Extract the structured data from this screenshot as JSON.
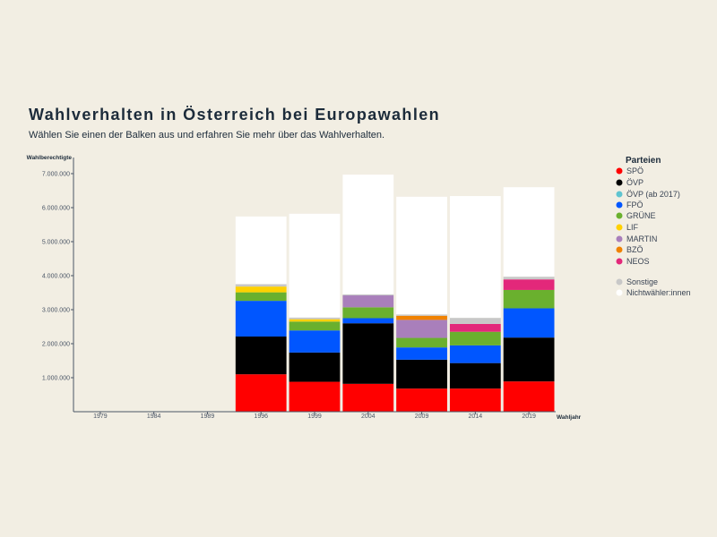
{
  "header": {
    "title": "Wahlverhalten in Österreich bei Europawahlen",
    "subtitle": "Wählen Sie einen der Balken aus und erfahren Sie mehr über das Wahlverhalten."
  },
  "chart_data": {
    "type": "bar",
    "stacked": true,
    "ylabel": "Wahlberechtigte",
    "xlabel": "Wahljahr",
    "ylim": [
      0,
      7000000
    ],
    "yticks": [
      "1.000.000",
      "2.000.000",
      "3.000.000",
      "4.000.000",
      "5.000.000",
      "6.000.000",
      "7.000.000"
    ],
    "categories": [
      "1979",
      "1984",
      "1989",
      "1996",
      "1999",
      "2004",
      "2009",
      "2014",
      "2019"
    ],
    "legend": {
      "title": "Parteien",
      "position": "right"
    },
    "series": [
      {
        "name": "SPÖ",
        "color": "#ff0000",
        "values": [
          null,
          null,
          null,
          1100000,
          880000,
          820000,
          680000,
          680000,
          890000
        ]
      },
      {
        "name": "ÖVP",
        "color": "#000000",
        "values": [
          null,
          null,
          null,
          1110000,
          860000,
          1780000,
          850000,
          750000,
          1290000
        ]
      },
      {
        "name": "ÖVP (ab 2017)",
        "color": "#5fc4d0",
        "values": [
          null,
          null,
          null,
          0,
          0,
          0,
          0,
          0,
          0
        ]
      },
      {
        "name": "FPÖ",
        "color": "#0056ff",
        "values": [
          null,
          null,
          null,
          1050000,
          650000,
          150000,
          360000,
          520000,
          860000
        ]
      },
      {
        "name": "GRÜNE",
        "color": "#6ab02e",
        "values": [
          null,
          null,
          null,
          250000,
          260000,
          320000,
          280000,
          400000,
          540000
        ]
      },
      {
        "name": "LIF",
        "color": "#ffd100",
        "values": [
          null,
          null,
          null,
          170000,
          70000,
          0,
          0,
          0,
          0
        ]
      },
      {
        "name": "MARTIN",
        "color": "#a97fbb",
        "values": [
          null,
          null,
          null,
          0,
          0,
          350000,
          530000,
          0,
          0
        ]
      },
      {
        "name": "BZÖ",
        "color": "#f08200",
        "values": [
          null,
          null,
          null,
          0,
          0,
          0,
          120000,
          0,
          0
        ]
      },
      {
        "name": "NEOS",
        "color": "#e3287a",
        "values": [
          null,
          null,
          null,
          0,
          0,
          0,
          0,
          230000,
          310000
        ]
      },
      {
        "name": "Sonstige",
        "color": "#c8c8c8",
        "values": [
          null,
          null,
          null,
          70000,
          50000,
          30000,
          40000,
          180000,
          80000
        ]
      },
      {
        "name": "Nichtwähler:innen",
        "color": "#ffffff",
        "values": [
          null,
          null,
          null,
          1990000,
          3050000,
          3520000,
          3460000,
          3580000,
          2630000
        ]
      }
    ]
  }
}
